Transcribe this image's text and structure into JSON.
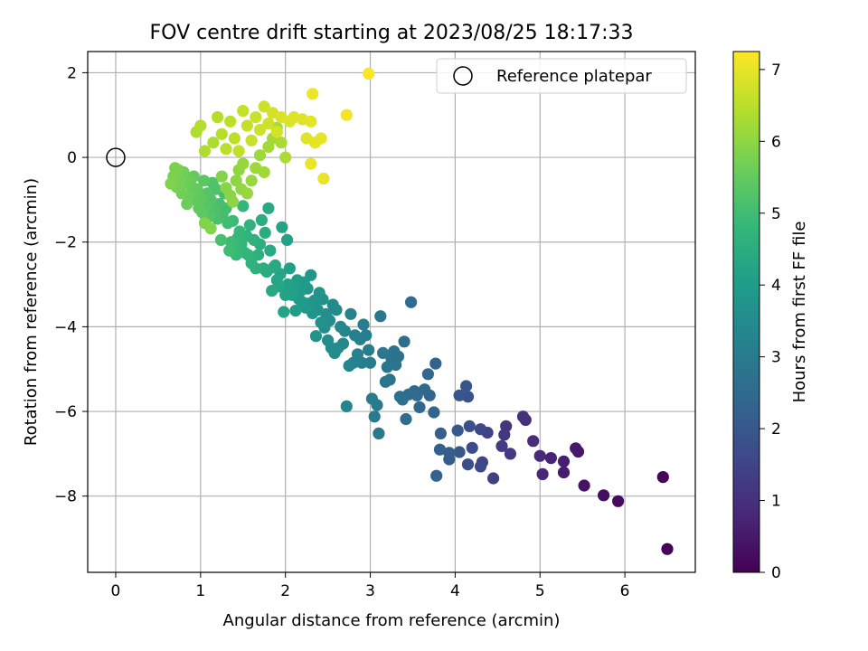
{
  "chart_data": {
    "type": "scatter",
    "title": "FOV centre drift starting at 2023/08/25 18:17:33",
    "xlabel": "Angular distance from reference (arcmin)",
    "ylabel": "Rotation from reference (arcmin)",
    "xlim": [
      -0.33,
      6.83
    ],
    "ylim": [
      -9.8,
      2.5
    ],
    "xticks": [
      0,
      1,
      2,
      3,
      4,
      5,
      6
    ],
    "yticks": [
      -8,
      -6,
      -4,
      -2,
      0,
      2
    ],
    "xtick_labels": [
      "0",
      "1",
      "2",
      "3",
      "4",
      "5",
      "6"
    ],
    "ytick_labels": [
      "−8",
      "−6",
      "−4",
      "−2",
      "0",
      "2"
    ],
    "grid": true,
    "legend": {
      "position": "top-right",
      "label": "Reference platepar",
      "marker": "open-circle"
    },
    "reference_point": {
      "x": 0,
      "y": 0
    },
    "colorbar": {
      "label": "Hours from first FF file",
      "colormap": "viridis",
      "range": [
        0,
        7.25
      ],
      "ticks": [
        0,
        1,
        2,
        3,
        4,
        5,
        6,
        7
      ],
      "tick_labels": [
        "0",
        "1",
        "2",
        "3",
        "4",
        "5",
        "6",
        "7"
      ]
    },
    "colormap_stops": [
      "#440154",
      "#482878",
      "#3e4989",
      "#31688e",
      "#26828e",
      "#1f9e89",
      "#35b779",
      "#6ece58",
      "#b5de2b",
      "#fde725"
    ],
    "points": [
      [
        6.5,
        -9.25,
        0.05
      ],
      [
        6.45,
        -7.55,
        0.12
      ],
      [
        5.92,
        -8.12,
        0.2
      ],
      [
        5.75,
        -7.98,
        0.28
      ],
      [
        5.52,
        -7.75,
        0.36
      ],
      [
        5.45,
        -6.95,
        0.44
      ],
      [
        5.42,
        -6.87,
        0.5
      ],
      [
        5.28,
        -7.44,
        0.56
      ],
      [
        5.28,
        -7.18,
        0.62
      ],
      [
        5.13,
        -7.1,
        0.7
      ],
      [
        5.03,
        -7.48,
        0.78
      ],
      [
        5.0,
        -7.05,
        0.85
      ],
      [
        4.92,
        -6.7,
        0.92
      ],
      [
        4.83,
        -6.2,
        1.0
      ],
      [
        4.8,
        -6.12,
        1.06
      ],
      [
        4.6,
        -6.35,
        1.12
      ],
      [
        4.58,
        -6.55,
        1.18
      ],
      [
        4.65,
        -7.0,
        1.25
      ],
      [
        4.55,
        -6.82,
        1.32
      ],
      [
        4.45,
        -7.58,
        1.38
      ],
      [
        4.38,
        -6.5,
        1.45
      ],
      [
        4.32,
        -7.2,
        1.52
      ],
      [
        4.3,
        -6.42,
        1.58
      ],
      [
        4.3,
        -7.3,
        1.62
      ],
      [
        4.2,
        -6.86,
        1.7
      ],
      [
        4.15,
        -7.25,
        1.75
      ],
      [
        4.17,
        -6.35,
        1.8
      ],
      [
        4.15,
        -5.65,
        1.85
      ],
      [
        4.05,
        -5.62,
        1.9
      ],
      [
        4.13,
        -5.4,
        1.95
      ],
      [
        4.05,
        -6.96,
        2.0
      ],
      [
        4.03,
        -6.45,
        2.05
      ],
      [
        3.93,
        -7.13,
        2.1
      ],
      [
        3.93,
        -6.98,
        2.15
      ],
      [
        3.83,
        -6.52,
        2.18
      ],
      [
        3.82,
        -6.9,
        2.22
      ],
      [
        3.78,
        -7.52,
        2.25
      ],
      [
        3.77,
        -4.87,
        2.28
      ],
      [
        3.75,
        -6.02,
        2.32
      ],
      [
        3.7,
        -5.62,
        2.35
      ],
      [
        3.68,
        -5.12,
        2.38
      ],
      [
        3.64,
        -5.48,
        2.42
      ],
      [
        3.58,
        -5.9,
        2.45
      ],
      [
        3.55,
        -5.62,
        2.48
      ],
      [
        3.52,
        -5.52,
        2.5
      ],
      [
        3.48,
        -3.42,
        2.55
      ],
      [
        3.45,
        -5.6,
        2.58
      ],
      [
        3.42,
        -6.18,
        2.6
      ],
      [
        3.4,
        -4.35,
        2.62
      ],
      [
        3.38,
        -5.72,
        2.65
      ],
      [
        3.35,
        -5.65,
        2.68
      ],
      [
        3.33,
        -4.7,
        2.7
      ],
      [
        3.3,
        -4.9,
        2.72
      ],
      [
        3.28,
        -4.58,
        2.75
      ],
      [
        3.25,
        -4.75,
        2.78
      ],
      [
        3.23,
        -5.25,
        2.8
      ],
      [
        3.2,
        -4.95,
        2.82
      ],
      [
        3.18,
        -5.3,
        2.85
      ],
      [
        3.15,
        -4.62,
        2.88
      ],
      [
        3.12,
        -3.75,
        2.9
      ],
      [
        3.1,
        -6.52,
        2.92
      ],
      [
        3.08,
        -5.85,
        2.95
      ],
      [
        3.05,
        -6.12,
        2.98
      ],
      [
        3.02,
        -5.7,
        3.0
      ],
      [
        3.0,
        -4.85,
        3.02
      ],
      [
        2.98,
        -4.55,
        3.05
      ],
      [
        2.95,
        -4.2,
        3.08
      ],
      [
        2.92,
        -3.95,
        3.1
      ],
      [
        2.9,
        -4.85,
        3.12
      ],
      [
        2.88,
        -4.3,
        3.15
      ],
      [
        2.85,
        -4.65,
        3.18
      ],
      [
        2.82,
        -4.2,
        3.2
      ],
      [
        2.8,
        -4.85,
        3.22
      ],
      [
        2.77,
        -3.7,
        3.25
      ],
      [
        2.75,
        -4.92,
        3.28
      ],
      [
        2.72,
        -5.88,
        3.3
      ],
      [
        2.7,
        -4.1,
        3.32
      ],
      [
        2.68,
        -4.4,
        3.35
      ],
      [
        2.65,
        -4.0,
        3.38
      ],
      [
        2.62,
        -4.5,
        3.4
      ],
      [
        2.6,
        -3.6,
        3.42
      ],
      [
        2.58,
        -4.62,
        3.45
      ],
      [
        2.56,
        -3.48,
        3.48
      ],
      [
        2.54,
        -4.5,
        3.5
      ],
      [
        2.52,
        -3.85,
        3.52
      ],
      [
        2.5,
        -4.32,
        3.55
      ],
      [
        2.48,
        -3.7,
        3.58
      ],
      [
        2.46,
        -4.02,
        3.6
      ],
      [
        2.44,
        -3.35,
        3.62
      ],
      [
        2.42,
        -3.9,
        3.65
      ],
      [
        2.4,
        -3.2,
        3.68
      ],
      [
        2.38,
        -3.6,
        3.7
      ],
      [
        2.36,
        -4.22,
        3.72
      ],
      [
        2.34,
        -3.38,
        3.75
      ],
      [
        2.32,
        -3.68,
        3.78
      ],
      [
        2.3,
        -2.78,
        3.8
      ],
      [
        2.28,
        -3.45,
        3.82
      ],
      [
        2.26,
        -3.1,
        3.85
      ],
      [
        2.24,
        -3.55,
        3.88
      ],
      [
        2.22,
        -2.95,
        3.9
      ],
      [
        2.2,
        -3.42,
        3.92
      ],
      [
        2.18,
        -3.15,
        3.95
      ],
      [
        2.16,
        -3.35,
        3.98
      ],
      [
        2.14,
        -2.9,
        4.0
      ],
      [
        2.12,
        -3.62,
        4.02
      ],
      [
        2.1,
        -3.05,
        4.05
      ],
      [
        2.08,
        -3.25,
        4.08
      ],
      [
        2.05,
        -2.62,
        4.1
      ],
      [
        2.03,
        -3.0,
        4.12
      ],
      [
        2.02,
        -1.95,
        4.15
      ],
      [
        2.0,
        -3.25,
        4.18
      ],
      [
        1.98,
        -3.65,
        4.2
      ],
      [
        1.96,
        -1.65,
        4.22
      ],
      [
        1.94,
        -2.75,
        4.25
      ],
      [
        1.92,
        -3.05,
        4.28
      ],
      [
        1.9,
        -2.9,
        4.3
      ],
      [
        1.88,
        -2.55,
        4.32
      ],
      [
        1.86,
        -2.6,
        4.35
      ],
      [
        1.84,
        -3.15,
        4.38
      ],
      [
        1.82,
        -2.2,
        4.4
      ],
      [
        1.8,
        -1.2,
        4.42
      ],
      [
        1.78,
        -2.7,
        4.45
      ],
      [
        1.76,
        -1.78,
        4.48
      ],
      [
        1.74,
        -2.62,
        4.5
      ],
      [
        1.72,
        -1.48,
        4.52
      ],
      [
        1.7,
        -2.05,
        4.55
      ],
      [
        1.68,
        -2.3,
        4.58
      ],
      [
        1.65,
        -2.62,
        4.6
      ],
      [
        1.63,
        -1.95,
        4.62
      ],
      [
        1.6,
        -2.5,
        4.65
      ],
      [
        1.58,
        -1.6,
        4.68
      ],
      [
        1.56,
        -2.3,
        4.7
      ],
      [
        1.54,
        -1.85,
        4.72
      ],
      [
        1.52,
        -2.25,
        4.75
      ],
      [
        1.5,
        -1.15,
        4.78
      ],
      [
        1.48,
        -2.05,
        4.8
      ],
      [
        1.46,
        -1.75,
        4.82
      ],
      [
        1.44,
        -1.9,
        4.85
      ],
      [
        1.42,
        -2.3,
        4.88
      ],
      [
        1.4,
        -2.05,
        4.9
      ],
      [
        1.38,
        -1.5,
        4.92
      ],
      [
        1.36,
        -2.0,
        4.95
      ],
      [
        1.34,
        -2.2,
        4.98
      ],
      [
        1.32,
        -1.55,
        5.0
      ],
      [
        1.3,
        -1.2,
        5.02
      ],
      [
        1.28,
        -0.85,
        5.05
      ],
      [
        1.26,
        -1.35,
        5.08
      ],
      [
        1.24,
        -1.95,
        5.1
      ],
      [
        1.22,
        -1.1,
        5.12
      ],
      [
        1.2,
        -1.45,
        5.15
      ],
      [
        1.18,
        -0.75,
        5.18
      ],
      [
        1.16,
        -1.25,
        5.2
      ],
      [
        1.14,
        -0.6,
        5.22
      ],
      [
        1.12,
        -1.0,
        5.25
      ],
      [
        1.1,
        -1.4,
        5.28
      ],
      [
        1.08,
        -0.85,
        5.3
      ],
      [
        1.06,
        -1.15,
        5.32
      ],
      [
        1.04,
        -0.55,
        5.35
      ],
      [
        1.02,
        -1.3,
        5.38
      ],
      [
        1.0,
        -0.95,
        5.4
      ],
      [
        0.98,
        -1.2,
        5.42
      ],
      [
        0.96,
        -0.75,
        5.45
      ],
      [
        0.94,
        -1.0,
        5.48
      ],
      [
        0.92,
        -0.45,
        5.5
      ],
      [
        0.9,
        -0.7,
        5.52
      ],
      [
        0.88,
        -0.55,
        5.55
      ],
      [
        0.86,
        -0.9,
        5.58
      ],
      [
        0.84,
        -1.1,
        5.6
      ],
      [
        0.82,
        -0.6,
        5.62
      ],
      [
        0.8,
        -0.35,
        5.65
      ],
      [
        0.78,
        -0.85,
        5.68
      ],
      [
        0.76,
        -0.55,
        5.7
      ],
      [
        0.74,
        -0.3,
        5.72
      ],
      [
        0.72,
        -0.7,
        5.75
      ],
      [
        0.7,
        -0.25,
        5.78
      ],
      [
        0.68,
        -0.45,
        5.8
      ],
      [
        0.65,
        -0.62,
        5.82
      ],
      [
        1.05,
        -1.55,
        5.85
      ],
      [
        1.12,
        -1.68,
        5.88
      ],
      [
        1.25,
        -0.45,
        5.9
      ],
      [
        1.3,
        -0.72,
        5.92
      ],
      [
        1.35,
        -0.9,
        5.95
      ],
      [
        1.38,
        -1.05,
        5.98
      ],
      [
        1.42,
        -0.55,
        6.0
      ],
      [
        1.45,
        -0.3,
        6.02
      ],
      [
        1.48,
        -0.75,
        6.05
      ],
      [
        1.5,
        -0.15,
        6.08
      ],
      [
        1.55,
        -0.85,
        6.1
      ],
      [
        1.6,
        -0.55,
        6.12
      ],
      [
        1.65,
        -0.25,
        6.15
      ],
      [
        1.7,
        0.05,
        6.18
      ],
      [
        1.75,
        -0.35,
        6.2
      ],
      [
        1.8,
        0.25,
        6.22
      ],
      [
        1.85,
        0.45,
        6.25
      ],
      [
        1.9,
        0.7,
        6.28
      ],
      [
        1.95,
        0.35,
        6.3
      ],
      [
        2.0,
        0.0,
        6.32
      ],
      [
        1.15,
        0.35,
        6.35
      ],
      [
        1.05,
        0.15,
        6.38
      ],
      [
        0.95,
        0.6,
        6.4
      ],
      [
        1.0,
        0.75,
        6.42
      ],
      [
        1.2,
        0.95,
        6.45
      ],
      [
        1.25,
        0.55,
        6.48
      ],
      [
        1.3,
        0.2,
        6.5
      ],
      [
        1.35,
        0.85,
        6.52
      ],
      [
        1.4,
        0.45,
        6.55
      ],
      [
        1.45,
        0.15,
        6.58
      ],
      [
        1.5,
        1.1,
        6.6
      ],
      [
        1.55,
        0.75,
        6.62
      ],
      [
        1.6,
        0.4,
        6.65
      ],
      [
        1.65,
        0.95,
        6.68
      ],
      [
        1.7,
        0.65,
        6.7
      ],
      [
        1.75,
        1.2,
        6.72
      ],
      [
        1.8,
        0.8,
        6.75
      ],
      [
        1.85,
        1.05,
        6.78
      ],
      [
        1.9,
        0.6,
        6.8
      ],
      [
        1.95,
        0.95,
        6.82
      ],
      [
        2.05,
        0.85,
        6.85
      ],
      [
        2.1,
        0.95,
        6.88
      ],
      [
        2.2,
        0.9,
        6.9
      ],
      [
        2.25,
        0.45,
        6.92
      ],
      [
        2.3,
        0.85,
        6.95
      ],
      [
        2.35,
        0.35,
        6.98
      ],
      [
        2.42,
        0.45,
        7.0
      ],
      [
        2.45,
        -0.5,
        7.02
      ],
      [
        2.3,
        -0.15,
        7.05
      ],
      [
        2.32,
        1.5,
        7.08
      ],
      [
        2.72,
        1.0,
        7.12
      ],
      [
        2.98,
        1.98,
        7.2
      ]
    ]
  }
}
